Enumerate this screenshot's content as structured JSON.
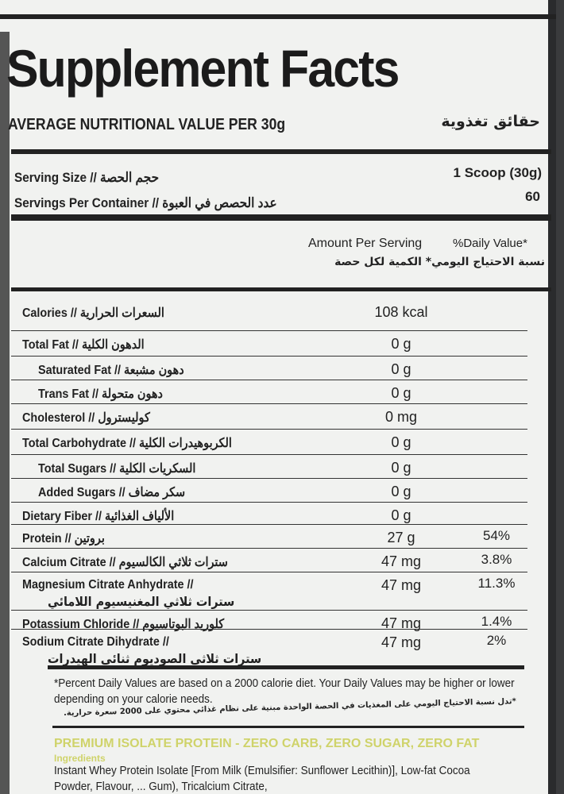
{
  "title": "Supplement Facts",
  "subtitle": "AVERAGE NUTRITIONAL VALUE PER 30g",
  "subtitle_ar": "حقائق تغذوية",
  "serving_size": {
    "label": "Serving Size // حجم الحصة",
    "value": "1 Scoop (30g)"
  },
  "servings_per_container": {
    "label": "Servings Per Container // عدد الحصص في العبوة",
    "value": "60"
  },
  "headers": {
    "amount": "Amount Per Serving",
    "dv": "%Daily Value*",
    "ar": "نسبة الاحتياج اليومي* الكمية لكل حصة"
  },
  "rows": [
    {
      "label": "Calories // السعرات الحرارية",
      "amount": "108 kcal",
      "dv": ""
    },
    {
      "label": "Total Fat // الدهون الكلية",
      "amount": "0 g",
      "dv": ""
    },
    {
      "label": "Saturated Fat // دهون مشبعة",
      "amount": "0 g",
      "dv": ""
    },
    {
      "label": "Trans Fat // دهون متحولة",
      "amount": "0 g",
      "dv": ""
    },
    {
      "label": "Cholesterol // كوليسترول",
      "amount": "0 mg",
      "dv": ""
    },
    {
      "label": "Total Carbohydrate // الكربوهيدرات الكلية",
      "amount": "0 g",
      "dv": ""
    },
    {
      "label": "Total Sugars // السكريات الكلية",
      "amount": "0 g",
      "dv": ""
    },
    {
      "label": "Added Sugars // سكر مضاف",
      "amount": "0 g",
      "dv": ""
    },
    {
      "label": "Dietary Fiber // الألياف الغذائية",
      "amount": "0 g",
      "dv": ""
    },
    {
      "label": "Protein // بروتين",
      "amount": "27 g",
      "dv": "54%"
    },
    {
      "label": "Calcium Citrate // سترات ثلاثي الكالسيوم",
      "amount": "47 mg",
      "dv": "3.8%"
    },
    {
      "label": "Magnesium Citrate Anhydrate //",
      "label2": "سترات ثلاثي المغنيسيوم اللامائي",
      "amount": "47 mg",
      "dv": "11.3%"
    },
    {
      "label": "Potassium Chloride // كلوريد البوتاسيوم",
      "amount": "47 mg",
      "dv": "1.4%"
    },
    {
      "label": "Sodium Citrate Dihydrate //",
      "label2": "سترات ثلاثي الصوديوم ثنائي الهيدرات",
      "amount": "47 mg",
      "dv": "2%"
    }
  ],
  "footnote": [
    "*Percent Daily Values are based on a 2000 calorie diet. Your Daily Values may be higher or lower",
    "depending on your calorie needs."
  ],
  "footnote_ar": "*تدل نسبة الاحتياج اليومي على المغذيات في الحصة الواحدة مبنية على نظام غذائي محتوي على 2000 سعرة حرارية.",
  "promo": "PREMIUM ISOLATE PROTEIN - ZERO CARB, ZERO SUGAR, ZERO FAT",
  "ingredients_heading": "Ingredients",
  "ingredients": [
    "Instant Whey Protein Isolate [From Milk (Emulsifier: Sunflower Lecithin)], Low-fat Cocoa",
    "Powder, Flavour, ... Gum), Tricalcium Citrate,"
  ]
}
